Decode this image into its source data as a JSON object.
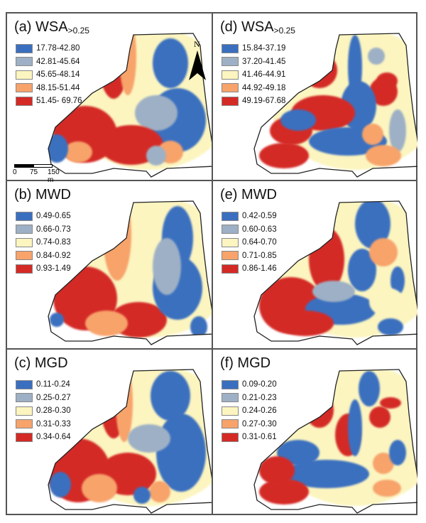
{
  "figure": {
    "panels": [
      {
        "id": "a",
        "label": "(a) WSA",
        "subscript": ">0.25",
        "legend": [
          {
            "range": "17.78-42.80",
            "color": "#3a6fbf"
          },
          {
            "range": "42.81-45.64",
            "color": "#9eb0c5"
          },
          {
            "range": "45.65-48.14",
            "color": "#fcf5c0"
          },
          {
            "range": "48.15-51.44",
            "color": "#f7a36b"
          },
          {
            "range": "51.45- 69.76",
            "color": "#d42a25"
          }
        ]
      },
      {
        "id": "b",
        "label": "(b) MWD",
        "subscript": "",
        "legend": [
          {
            "range": "0.49-0.65",
            "color": "#3a6fbf"
          },
          {
            "range": "0.66-0.73",
            "color": "#9eb0c5"
          },
          {
            "range": "0.74-0.83",
            "color": "#fcf5c0"
          },
          {
            "range": "0.84-0.92",
            "color": "#f7a36b"
          },
          {
            "range": "0.93-1.49",
            "color": "#d42a25"
          }
        ]
      },
      {
        "id": "c",
        "label": "(c) MGD",
        "subscript": "",
        "legend": [
          {
            "range": "0.11-0.24",
            "color": "#3a6fbf"
          },
          {
            "range": "0.25-0.27",
            "color": "#9eb0c5"
          },
          {
            "range": "0.28-0.30",
            "color": "#fcf5c0"
          },
          {
            "range": "0.31-0.33",
            "color": "#f7a36b"
          },
          {
            "range": "0.34-0.64",
            "color": "#d42a25"
          }
        ]
      },
      {
        "id": "d",
        "label": "(d) WSA",
        "subscript": ">0.25",
        "legend": [
          {
            "range": "15.84-37.19",
            "color": "#3a6fbf"
          },
          {
            "range": "37.20-41.45",
            "color": "#9eb0c5"
          },
          {
            "range": "41.46-44.91",
            "color": "#fcf5c0"
          },
          {
            "range": "44.92-49.18",
            "color": "#f7a36b"
          },
          {
            "range": "49.19-67.68",
            "color": "#d42a25"
          }
        ]
      },
      {
        "id": "e",
        "label": "(e) MWD",
        "subscript": "",
        "legend": [
          {
            "range": "0.42-0.59",
            "color": "#3a6fbf"
          },
          {
            "range": "0.60-0.63",
            "color": "#9eb0c5"
          },
          {
            "range": "0.64-0.70",
            "color": "#fcf5c0"
          },
          {
            "range": "0.71-0.85",
            "color": "#f7a36b"
          },
          {
            "range": "0.86-1.46",
            "color": "#d42a25"
          }
        ]
      },
      {
        "id": "f",
        "label": "(f) MGD",
        "subscript": "",
        "legend": [
          {
            "range": "0.09-0.20",
            "color": "#3a6fbf"
          },
          {
            "range": "0.21-0.23",
            "color": "#9eb0c5"
          },
          {
            "range": "0.24-0.26",
            "color": "#fcf5c0"
          },
          {
            "range": "0.27-0.30",
            "color": "#f7a36b"
          },
          {
            "range": "0.31-0.61",
            "color": "#d42a25"
          }
        ]
      }
    ],
    "north_arrow": {
      "label": "N",
      "icon": "north-arrow-icon"
    },
    "scale_bar": {
      "ticks": [
        "0",
        "75",
        "150 m"
      ]
    },
    "class_colors": {
      "class1": "#3a6fbf",
      "class2": "#9eb0c5",
      "class3": "#fcf5c0",
      "class4": "#f7a36b",
      "class5": "#d42a25",
      "frame": "#555555"
    }
  }
}
